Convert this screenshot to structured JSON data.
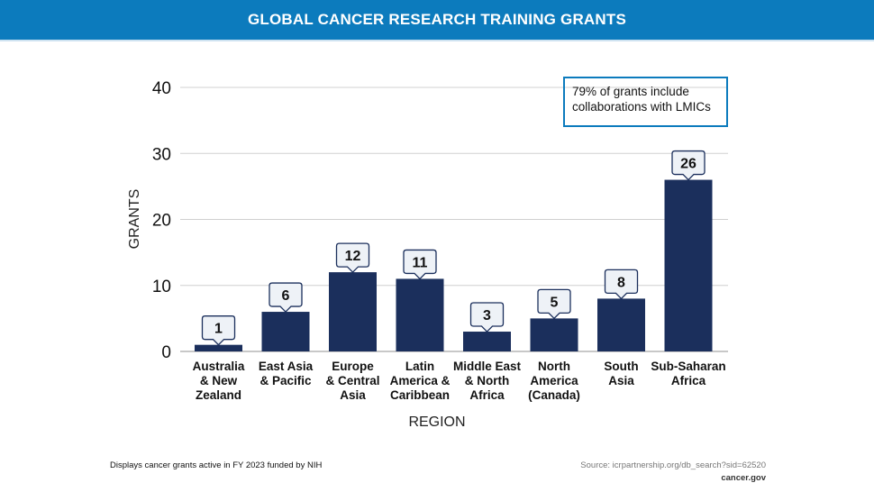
{
  "header": {
    "title": "GLOBAL CANCER RESEARCH TRAINING GRANTS"
  },
  "colors": {
    "header": "#0c7bbd",
    "bar": "#1b2f5c",
    "callout_fill": "#eef2f7",
    "grid": "#d0d0d0"
  },
  "chart_data": {
    "type": "bar",
    "title": "GLOBAL CANCER RESEARCH TRAINING GRANTS",
    "xlabel": "REGION",
    "ylabel": "GRANTS",
    "ylim": [
      0,
      40
    ],
    "yticks": [
      0,
      10,
      20,
      30,
      40
    ],
    "grid": true,
    "categories": [
      [
        "Australia",
        "& New",
        "Zealand"
      ],
      [
        "East Asia",
        "& Pacific"
      ],
      [
        "Europe",
        "& Central",
        "Asia"
      ],
      [
        "Latin",
        "America &",
        "Caribbean"
      ],
      [
        "Middle East",
        "& North",
        "Africa"
      ],
      [
        "North",
        "America",
        "(Canada)"
      ],
      [
        "South",
        "Asia"
      ],
      [
        "Sub-Saharan",
        "Africa"
      ]
    ],
    "values": [
      1,
      6,
      12,
      11,
      3,
      5,
      8,
      26
    ],
    "annotation": "79% of grants include collaborations with LMICs"
  },
  "footer": {
    "note": "Displays cancer grants active in FY 2023 funded by NIH",
    "source": "Source: icrpartnership.org/db_search?sid=62520",
    "org": "cancer.gov"
  }
}
